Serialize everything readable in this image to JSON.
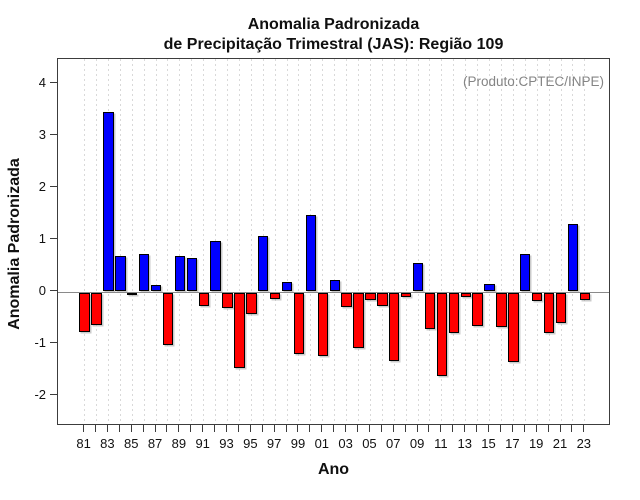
{
  "title": {
    "line1": "Anomalia Padronizada",
    "line2": "de Precipitação Trimestral (JAS): Região 109"
  },
  "chart_data": {
    "type": "bar",
    "title": "Anomalia Padronizada de Precipitação Trimestral (JAS): Região 109",
    "xlabel": "Ano",
    "ylabel": "Anomalia Padronizada",
    "annotation": "(Produto:CPTEC/INPE)",
    "categories": [
      1981,
      1982,
      1983,
      1984,
      1985,
      1986,
      1987,
      1988,
      1989,
      1990,
      1991,
      1992,
      1993,
      1994,
      1995,
      1996,
      1997,
      1998,
      1999,
      2000,
      2001,
      2002,
      2003,
      2004,
      2005,
      2006,
      2007,
      2008,
      2009,
      2010,
      2011,
      2012,
      2013,
      2014,
      2015,
      2016,
      2017,
      2018,
      2019,
      2020,
      2021,
      2022,
      2023
    ],
    "values": [
      -0.75,
      -0.62,
      3.45,
      0.68,
      -0.05,
      0.72,
      0.12,
      -1.01,
      0.69,
      0.65,
      -0.26,
      0.98,
      -0.29,
      -1.46,
      -0.41,
      1.06,
      -0.12,
      0.18,
      -1.19,
      1.48,
      -1.22,
      0.22,
      -0.27,
      -1.06,
      -0.14,
      -0.26,
      -1.32,
      -0.08,
      0.54,
      -0.7,
      -1.6,
      -0.77,
      -0.08,
      -0.65,
      0.15,
      -0.67,
      -1.33,
      0.72,
      -0.16,
      -0.78,
      -0.59,
      1.3,
      -0.15
    ],
    "x_tick_labels": [
      "81",
      "83",
      "85",
      "87",
      "89",
      "91",
      "93",
      "95",
      "97",
      "99",
      "01",
      "03",
      "05",
      "07",
      "09",
      "11",
      "13",
      "15",
      "17",
      "19",
      "21",
      "23"
    ],
    "y_ticks": [
      -2,
      -1,
      0,
      1,
      2,
      3,
      4
    ],
    "ylim": [
      -2.58,
      4.48
    ],
    "grid": "vertical-dashed",
    "legend_position": "none",
    "colors": {
      "positive": "#0000FF",
      "negative": "#FF0000",
      "bar_border": "#000000",
      "zero_line": "#8A8A8A",
      "annotation_text": "#858585",
      "gridline": "#D9D9D9"
    }
  }
}
